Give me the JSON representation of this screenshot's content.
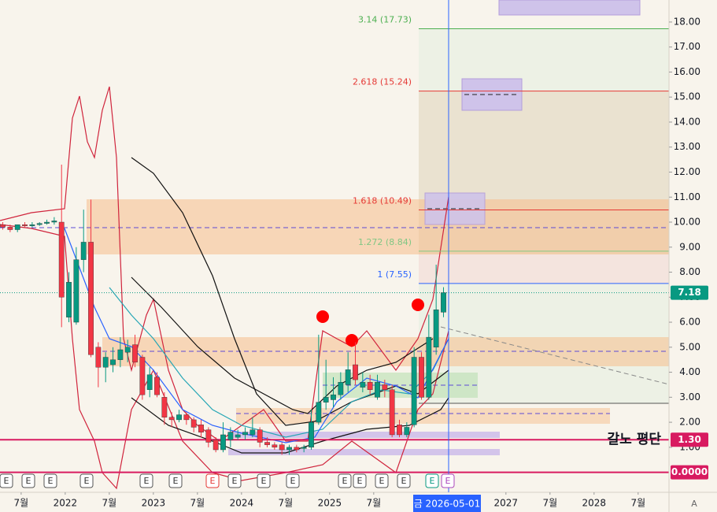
{
  "chart_data": {
    "type": "candlestick",
    "x": [
      "2021-04",
      "2021-05",
      "2021-06",
      "2021-07",
      "2021-08",
      "2021-09",
      "2021-10",
      "2021-11",
      "2021-12",
      "2022-01",
      "2022-02",
      "2022-03",
      "2022-04",
      "2022-05",
      "2022-06",
      "2022-07",
      "2022-08",
      "2022-09",
      "2022-10",
      "2022-11",
      "2022-12",
      "2023-01",
      "2023-02",
      "2023-03",
      "2023-04",
      "2023-05",
      "2023-06",
      "2023-07",
      "2023-08",
      "2023-09",
      "2023-10",
      "2023-11",
      "2023-12",
      "2024-01",
      "2024-02",
      "2024-03",
      "2024-04",
      "2024-05",
      "2024-06",
      "2024-07",
      "2024-08",
      "2024-09",
      "2024-10",
      "2024-11",
      "2024-12",
      "2025-01",
      "2025-02",
      "2025-03",
      "2025-04",
      "2025-05",
      "2025-06",
      "2025-07",
      "2025-08",
      "2025-09",
      "2025-10",
      "2025-11",
      "2025-12",
      "2026-01",
      "2026-02",
      "2026-03",
      "2026-04"
    ],
    "open": [
      9.9,
      9.8,
      9.7,
      9.9,
      9.85,
      9.9,
      9.95,
      10.0,
      10.0,
      6.2,
      6.0,
      8.5,
      9.2,
      5.0,
      4.2,
      4.3,
      4.5,
      4.8,
      5.1,
      4.6,
      3.3,
      3.8,
      3.0,
      2.2,
      2.1,
      2.3,
      2.1,
      1.9,
      1.7,
      1.3,
      0.9,
      1.3,
      1.4,
      1.5,
      1.5,
      1.7,
      1.2,
      1.1,
      1.1,
      0.9,
      1.0,
      0.95,
      1.0,
      2.0,
      2.8,
      2.9,
      3.1,
      3.5,
      4.3,
      3.4,
      3.6,
      3.0,
      3.5,
      3.3,
      1.9,
      1.5,
      1.9,
      4.6,
      3.0,
      5.0,
      6.4
    ],
    "high": [
      10.0,
      9.9,
      9.9,
      10.0,
      10.0,
      10.0,
      10.1,
      10.2,
      12.3,
      8.0,
      9.0,
      10.5,
      10.9,
      5.2,
      4.8,
      5.0,
      5.4,
      5.3,
      5.5,
      4.7,
      4.2,
      4.0,
      3.2,
      2.4,
      2.5,
      2.4,
      2.2,
      2.1,
      1.8,
      1.4,
      2.0,
      1.8,
      1.7,
      1.8,
      2.2,
      1.8,
      1.4,
      1.2,
      1.2,
      1.1,
      1.1,
      1.1,
      2.5,
      5.5,
      4.5,
      3.8,
      4.0,
      4.8,
      5.2,
      4.0,
      3.9,
      3.9,
      3.7,
      3.5,
      2.1,
      2.0,
      5.0,
      4.8,
      6.3,
      8.3,
      7.4
    ],
    "low": [
      9.7,
      9.6,
      9.6,
      9.8,
      9.8,
      9.85,
      9.9,
      9.9,
      5.8,
      6.0,
      5.9,
      8.0,
      4.6,
      3.4,
      3.6,
      4.0,
      4.2,
      4.4,
      4.2,
      2.9,
      3.0,
      3.0,
      1.9,
      1.8,
      2.0,
      1.9,
      1.6,
      1.4,
      1.0,
      0.8,
      0.8,
      1.0,
      1.3,
      1.3,
      1.4,
      1.0,
      1.0,
      0.9,
      0.7,
      0.7,
      0.8,
      0.8,
      0.9,
      1.9,
      2.5,
      2.6,
      2.9,
      3.2,
      3.5,
      3.2,
      3.1,
      2.9,
      3.0,
      1.4,
      1.4,
      1.4,
      1.8,
      2.9,
      2.9,
      4.7,
      6.2
    ],
    "close": [
      9.8,
      9.7,
      9.9,
      9.85,
      9.9,
      9.95,
      10.0,
      10.05,
      7.0,
      7.6,
      8.5,
      9.2,
      4.7,
      4.2,
      4.6,
      4.5,
      4.9,
      5.0,
      4.4,
      3.1,
      3.9,
      3.1,
      2.2,
      2.1,
      2.3,
      2.1,
      1.8,
      1.6,
      1.2,
      0.9,
      1.5,
      1.6,
      1.5,
      1.6,
      1.7,
      1.2,
      1.1,
      1.0,
      0.9,
      1.0,
      0.9,
      1.0,
      2.0,
      2.8,
      3.0,
      3.1,
      3.6,
      4.1,
      3.7,
      3.6,
      3.3,
      3.6,
      3.3,
      1.5,
      1.5,
      1.8,
      4.6,
      3.0,
      5.4,
      6.5,
      7.18
    ],
    "up_color": "#089981",
    "down_color": "#f23645",
    "xlim": [
      2021.26,
      2028.85
    ],
    "ylim": [
      -0.8,
      18.88
    ],
    "yticks": [
      {
        "value": 1,
        "label": "1.00"
      },
      {
        "value": 2,
        "label": "2.00"
      },
      {
        "value": 3,
        "label": "3.00"
      },
      {
        "value": 4,
        "label": "4.00"
      },
      {
        "value": 5,
        "label": "5.00"
      },
      {
        "value": 6,
        "label": "6.00"
      },
      {
        "value": 7,
        "label": "7.00"
      },
      {
        "value": 8,
        "label": "8.00"
      },
      {
        "value": 9,
        "label": "9.00"
      },
      {
        "value": 10,
        "label": "10.00"
      },
      {
        "value": 11,
        "label": "11.00"
      },
      {
        "value": 12,
        "label": "12.00"
      },
      {
        "value": 13,
        "label": "13.00"
      },
      {
        "value": 14,
        "label": "14.00"
      },
      {
        "value": 15,
        "label": "15.00"
      },
      {
        "value": 16,
        "label": "16.00"
      },
      {
        "value": 17,
        "label": "17.00"
      },
      {
        "value": 18,
        "label": "18.00"
      }
    ],
    "xticks": [
      {
        "value": 2021.5,
        "label": "7월"
      },
      2022,
      {
        "value": 2022.5,
        "label": "7월"
      },
      2023,
      {
        "value": 2023.5,
        "label": "7월"
      },
      2024,
      {
        "value": 2024.5,
        "label": "7월"
      },
      2025,
      {
        "value": 2025.5,
        "label": "7월"
      },
      2027,
      {
        "value": 2027.5,
        "label": "7월"
      },
      2028,
      {
        "value": 2028.5,
        "label": "7월"
      }
    ],
    "fib_levels": [
      {
        "label": "3.14 (17.73)",
        "value": 17.73,
        "color": "#4caf50"
      },
      {
        "label": "2.618 (15.24)",
        "value": 15.24,
        "color": "#e53935"
      },
      {
        "label": "1.618 (10.49)",
        "value": 10.49,
        "color": "#e53935"
      },
      {
        "label": "1.272 (8.84)",
        "value": 8.84,
        "color": "#81c784"
      },
      {
        "label": "1 (7.55)",
        "value": 7.55,
        "color": "#2962ff"
      }
    ],
    "price_badges": [
      {
        "label": "7.18",
        "value": 7.18,
        "color": "#089981"
      },
      {
        "label": "1.30",
        "value": 1.3,
        "color": "#d81b60"
      },
      {
        "label": "0.0000",
        "value": 0,
        "color": "#d81b60"
      }
    ],
    "annotation": "갈노 평단",
    "crosshair_label": "금 2026-05-01",
    "earnings_markers": [
      "E",
      "E",
      "E",
      "E",
      "E",
      "E",
      "E",
      "E",
      "E",
      "E",
      "E",
      "E",
      "E",
      "E",
      "E",
      "E"
    ],
    "corner_label": "A"
  }
}
